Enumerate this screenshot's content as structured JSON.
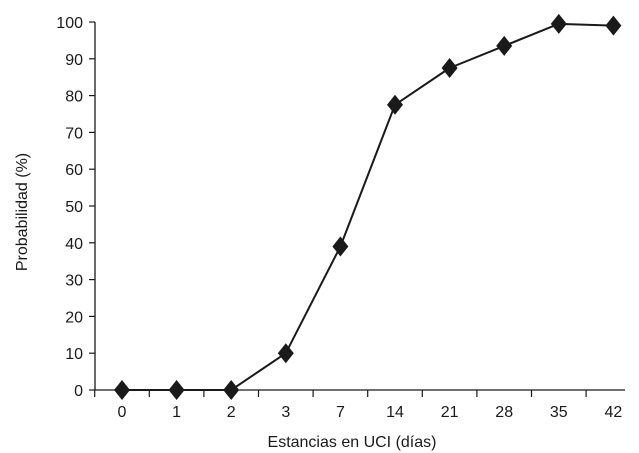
{
  "chart_data": {
    "type": "line",
    "title": "",
    "xlabel": "Estancias en UCI (días)",
    "ylabel": "Probabilidad (%)",
    "categories": [
      "0",
      "1",
      "2",
      "3",
      "7",
      "14",
      "21",
      "28",
      "35",
      "42"
    ],
    "series": [
      {
        "values": [
          0,
          0,
          0,
          10,
          39,
          77.5,
          87.5,
          93.5,
          99.5,
          99
        ]
      }
    ],
    "ylim": [
      0,
      100
    ],
    "yticks": [
      0,
      10,
      20,
      30,
      40,
      50,
      60,
      70,
      80,
      90,
      100
    ],
    "grid": false,
    "legend": "none",
    "marker": "diamond",
    "colors": {
      "line": "#1a1a1a",
      "marker": "#1a1a1a",
      "axis": "#1a1a1a"
    }
  }
}
